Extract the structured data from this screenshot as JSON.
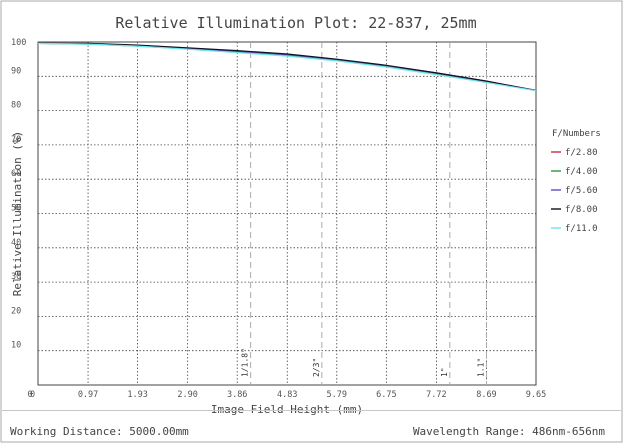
{
  "chart_data": {
    "type": "line",
    "title": "Relative Illumination Plot: 22-837, 25mm",
    "xlabel": "Image Field Height (mm)",
    "ylabel": "Relative Illumination (%)",
    "xlim": [
      0,
      9.65
    ],
    "ylim": [
      0,
      100
    ],
    "x_ticks": [
      "0",
      "0.97",
      "1.93",
      "2.90",
      "3.86",
      "4.83",
      "5.79",
      "6.75",
      "7.72",
      "8.69",
      "9.65"
    ],
    "y_ticks": [
      "0",
      "10",
      "20",
      "30",
      "40",
      "50",
      "60",
      "70",
      "80",
      "90",
      "100"
    ],
    "grid": true,
    "legend_title": "F/Numbers",
    "legend_position": "right",
    "series": [
      {
        "name": "f/2.80",
        "color": "#c0304a",
        "x": [
          0,
          0.97,
          1.93,
          2.9,
          3.86,
          4.83,
          5.79,
          6.75,
          7.72,
          8.69,
          9.65
        ],
        "y": [
          99.6,
          99.5,
          99.0,
          98.2,
          97.3,
          96.4,
          94.9,
          93.1,
          91.0,
          88.6,
          85.9
        ]
      },
      {
        "name": "f/4.00",
        "color": "#2e9a3a",
        "x": [
          0,
          0.97,
          1.93,
          2.9,
          3.86,
          4.83,
          5.79,
          6.75,
          7.72,
          8.69,
          9.65
        ],
        "y": [
          99.6,
          99.4,
          98.8,
          98.0,
          97.0,
          96.0,
          94.6,
          92.8,
          90.7,
          88.4,
          85.9
        ]
      },
      {
        "name": "f/5.60",
        "color": "#5a50c8",
        "x": [
          0,
          0.97,
          1.93,
          2.9,
          3.86,
          4.83,
          5.79,
          6.75,
          7.72,
          8.69,
          9.65
        ],
        "y": [
          99.6,
          99.5,
          99.0,
          98.2,
          97.3,
          96.3,
          94.9,
          93.1,
          90.9,
          88.5,
          85.9
        ]
      },
      {
        "name": "f/8.00",
        "color": "#111122",
        "x": [
          0,
          0.97,
          1.93,
          2.9,
          3.86,
          4.83,
          5.79,
          6.75,
          7.72,
          8.69,
          9.65
        ],
        "y": [
          99.6,
          99.6,
          99.1,
          98.3,
          97.5,
          96.5,
          95.0,
          93.2,
          91.0,
          88.6,
          85.8
        ]
      },
      {
        "name": "f/11.0",
        "color": "#6ee6ee",
        "x": [
          0,
          0.97,
          1.93,
          2.9,
          3.86,
          4.83,
          5.79,
          6.75,
          7.72,
          8.69,
          9.65
        ],
        "y": [
          99.6,
          99.4,
          98.8,
          97.9,
          96.9,
          95.9,
          94.5,
          92.7,
          90.5,
          88.2,
          85.8
        ]
      }
    ],
    "sensor_markers": [
      {
        "label": "1/1.8\"",
        "x1": 4.12,
        "x2": 4.12
      },
      {
        "label": "2/3\"",
        "x1": 5.5,
        "x2": 5.5
      },
      {
        "label": "1\"",
        "x1": 7.98,
        "x2": 7.98
      },
      {
        "label": "1.1\"",
        "x1": 8.69,
        "x2": 8.69
      }
    ]
  },
  "footer": {
    "working_distance": "Working Distance: 5000.00mm",
    "wavelength_range": "Wavelength Range: 486nm-656nm"
  }
}
